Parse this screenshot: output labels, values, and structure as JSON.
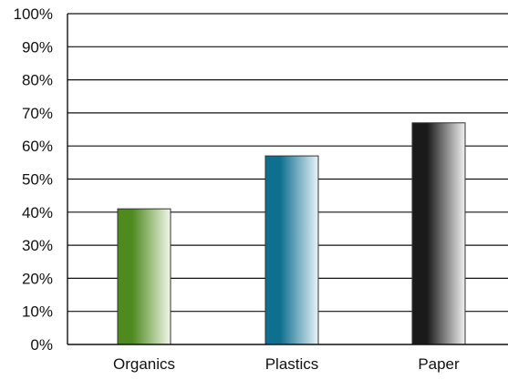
{
  "chart_data": {
    "type": "bar",
    "title": "",
    "xlabel": "",
    "ylabel": "",
    "categories": [
      "Organics",
      "Plastics",
      "Paper"
    ],
    "values": [
      41,
      57,
      67
    ],
    "ylim": [
      0,
      100
    ],
    "yticks": [
      0,
      10,
      20,
      30,
      40,
      50,
      60,
      70,
      80,
      90,
      100
    ],
    "ytick_labels": [
      "0%",
      "10%",
      "20%",
      "30%",
      "40%",
      "50%",
      "60%",
      "70%",
      "80%",
      "90%",
      "100%"
    ],
    "grid": true,
    "bar_colors": [
      {
        "dark": "#4f8a1f",
        "light": "#f2f7ea"
      },
      {
        "dark": "#0f6f8f",
        "light": "#e8f3f7"
      },
      {
        "dark": "#1a1a1a",
        "light": "#f2f2f2"
      }
    ]
  }
}
